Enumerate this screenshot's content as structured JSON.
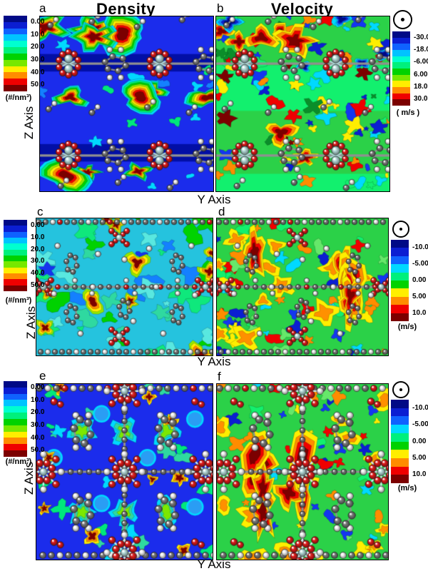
{
  "figure": {
    "title_density": "Density",
    "title_velocity": "Velocity",
    "y_axis_label": "Y Axis",
    "z_axis_label": "Z Axis",
    "panel_letters": {
      "a": "a",
      "b": "b",
      "c": "c",
      "d": "d",
      "e": "e",
      "f": "f"
    },
    "flow_direction_symbol": "circled-dot (flow normal to plane, out of page)"
  },
  "colorbars": {
    "density": {
      "ticks": [
        "0.00",
        "10.0",
        "20.0",
        "30.0",
        "40.0",
        "50.0"
      ],
      "units": "(#/nm³)"
    },
    "velocity_top": {
      "ticks": [
        "-30.0",
        "-18.0",
        "-6.00",
        "6.00",
        "18.0",
        "30.0"
      ],
      "units": "( m/s )"
    },
    "velocity_mid": {
      "ticks": [
        "-10.0",
        "-5.00",
        "0.00",
        "5.00",
        "10.0"
      ],
      "units": "(m/s)"
    },
    "velocity_bottom": {
      "ticks": [
        "-10.0",
        "-5.00",
        "0.00",
        "5.00",
        "10.0"
      ],
      "units": "(m/s)"
    }
  },
  "palettes": {
    "bands12": [
      "#000a86",
      "#0b1ed2",
      "#0f62ff",
      "#00c4ff",
      "#00ffd0",
      "#00f07c",
      "#00d200",
      "#77e800",
      "#ffee00",
      "#ff8c00",
      "#ef0000",
      "#7c0000"
    ],
    "bands10": [
      "#000a86",
      "#0b1ed2",
      "#0f62ff",
      "#00d9ff",
      "#00f07c",
      "#00d200",
      "#ffee00",
      "#ff8c00",
      "#ef0000",
      "#7c0000"
    ]
  },
  "atom_colors": {
    "carbon": "#7d7d7d",
    "hydrogen": "#f1f1f1",
    "oxygen": "#e11b1b",
    "metal": "#b9dedd"
  },
  "chart_data": [
    {
      "panel": "a",
      "type": "heatmap",
      "quantity": "number density",
      "column_title": "Density",
      "xlabel": "Y Axis",
      "ylabel": "Z Axis",
      "colorbar_ticks": [
        0.0,
        10.0,
        20.0,
        30.0,
        40.0,
        50.0
      ],
      "units": "#/nm³",
      "colorbar_bands": 12,
      "colorbar_side": "left",
      "appearance": "blue low-density channels with dark-red high-density lobes; ball-and-stick framework overlay (C gray, H white, O red, metal pale-blue)"
    },
    {
      "panel": "b",
      "type": "heatmap",
      "quantity": "velocity",
      "column_title": "Velocity",
      "xlabel": "Y Axis",
      "ylabel": "Z Axis",
      "colorbar_ticks": [
        -30.0,
        -18.0,
        -6.0,
        6.0,
        18.0,
        30.0
      ],
      "units": "m/s",
      "colorbar_bands": 12,
      "colorbar_side": "right",
      "flow_indicator": "circled dot (out of page)",
      "appearance": "green velocity field with spring-green channel bands and scattered dark-red, yellow and navy patches; same framework overlay as panel a"
    },
    {
      "panel": "c",
      "type": "heatmap",
      "quantity": "number density",
      "xlabel": "Y Axis",
      "ylabel": "Z Axis",
      "colorbar_ticks": [
        0.0,
        10.0,
        20.0,
        30.0,
        40.0,
        50.0
      ],
      "units": "#/nm³",
      "colorbar_bands": 12,
      "colorbar_side": "left",
      "appearance": "cyan/turquoise swirled density field with blue patches and small dark-red maxima; denser framework slice"
    },
    {
      "panel": "d",
      "type": "heatmap",
      "quantity": "velocity",
      "xlabel": "Y Axis",
      "ylabel": "Z Axis",
      "colorbar_ticks": [
        -10.0,
        -5.0,
        0.0,
        5.0,
        10.0
      ],
      "units": "m/s",
      "colorbar_bands": 10,
      "colorbar_side": "right",
      "flow_indicator": "circled dot (out of page)",
      "appearance": "green field with yellow/orange patches and large vertical dark-red lobes"
    },
    {
      "panel": "e",
      "type": "heatmap",
      "quantity": "number density",
      "xlabel": "Y Axis",
      "ylabel": "Z Axis",
      "colorbar_ticks": [
        0.0,
        10.0,
        20.0,
        30.0,
        40.0,
        50.0
      ],
      "units": "#/nm³",
      "colorbar_bands": 12,
      "colorbar_side": "left",
      "appearance": "blue field with cyan/green contour rings around framework rings, light-blue pore spots and small dark-red maxima; large ball-and-stick motif with red oxygen stars"
    },
    {
      "panel": "f",
      "type": "heatmap",
      "quantity": "velocity",
      "xlabel": "Y Axis",
      "ylabel": "Z Axis",
      "colorbar_ticks": [
        -10.0,
        -5.0,
        0.0,
        5.0,
        10.0
      ],
      "units": "m/s",
      "colorbar_bands": 10,
      "colorbar_side": "right",
      "flow_indicator": "circled dot (out of page)",
      "appearance": "green field with large central dark-red region, yellow streaks and navy specks; same framework overlay as panel e"
    }
  ],
  "layout_info": {
    "rows": 3,
    "cols": 2,
    "grid": "density left column, velocity right column"
  }
}
